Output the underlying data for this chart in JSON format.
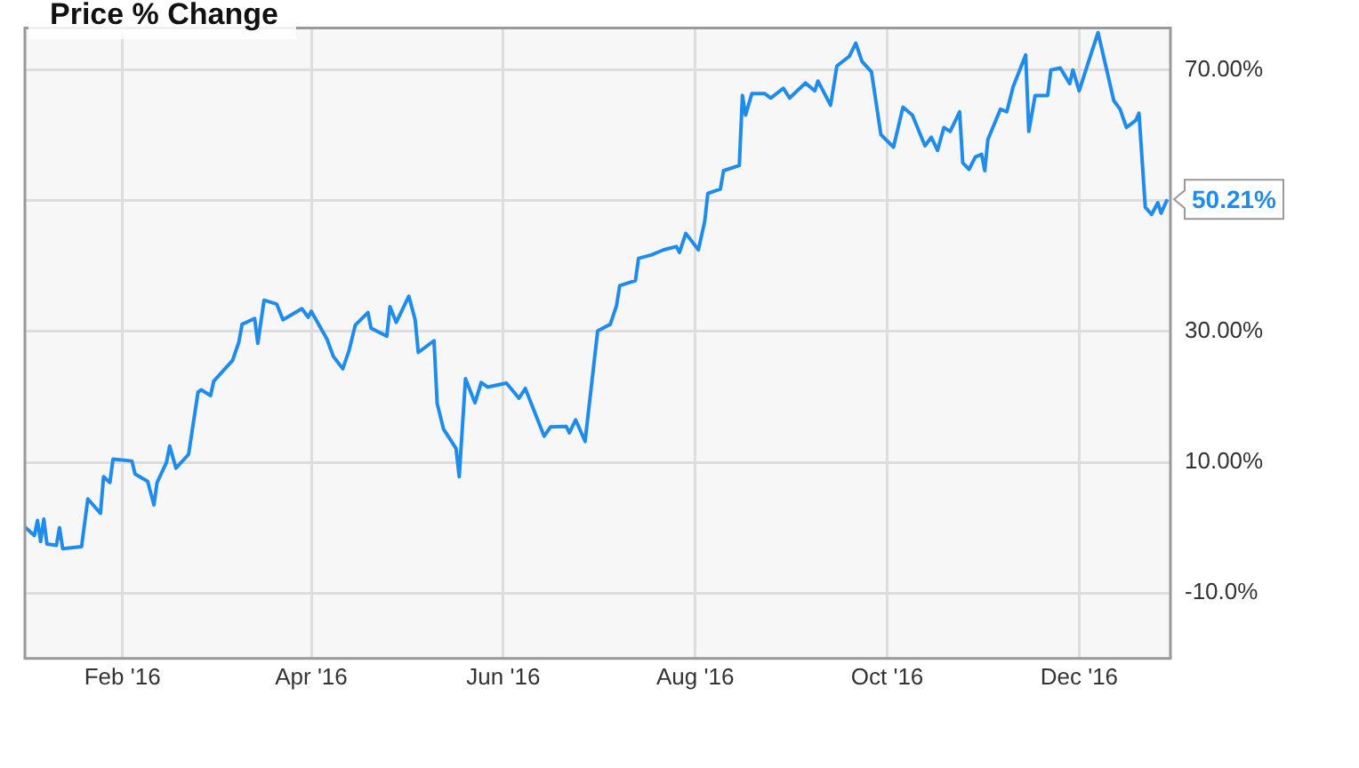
{
  "chart_data": {
    "type": "line",
    "title": "Price % Change",
    "x": [
      "2016-01-01",
      "2016-01-04",
      "2016-01-05",
      "2016-01-06",
      "2016-01-07",
      "2016-01-08",
      "2016-01-11",
      "2016-01-12",
      "2016-01-13",
      "2016-01-19",
      "2016-01-21",
      "2016-01-25",
      "2016-01-26",
      "2016-01-28",
      "2016-01-29",
      "2016-02-04",
      "2016-02-05",
      "2016-02-09",
      "2016-02-11",
      "2016-02-12",
      "2016-02-15",
      "2016-02-16",
      "2016-02-18",
      "2016-02-22",
      "2016-02-25",
      "2016-02-26",
      "2016-02-29",
      "2016-03-01",
      "2016-03-07",
      "2016-03-09",
      "2016-03-10",
      "2016-03-14",
      "2016-03-15",
      "2016-03-17",
      "2016-03-21",
      "2016-03-23",
      "2016-03-29",
      "2016-03-31",
      "2016-04-01",
      "2016-04-05",
      "2016-04-06",
      "2016-04-08",
      "2016-04-11",
      "2016-04-13",
      "2016-04-15",
      "2016-04-19",
      "2016-04-20",
      "2016-04-25",
      "2016-04-26",
      "2016-04-28",
      "2016-05-02",
      "2016-05-04",
      "2016-05-05",
      "2016-05-10",
      "2016-05-11",
      "2016-05-13",
      "2016-05-17",
      "2016-05-18",
      "2016-05-20",
      "2016-05-23",
      "2016-05-25",
      "2016-05-27",
      "2016-06-02",
      "2016-06-06",
      "2016-06-08",
      "2016-06-14",
      "2016-06-16",
      "2016-06-21",
      "2016-06-22",
      "2016-06-24",
      "2016-06-27",
      "2016-07-01",
      "2016-07-05",
      "2016-07-07",
      "2016-07-08",
      "2016-07-13",
      "2016-07-14",
      "2016-07-18",
      "2016-07-22",
      "2016-07-26",
      "2016-07-27",
      "2016-07-29",
      "2016-08-02",
      "2016-08-04",
      "2016-08-05",
      "2016-08-09",
      "2016-08-10",
      "2016-08-15",
      "2016-08-16",
      "2016-08-17",
      "2016-08-19",
      "2016-08-23",
      "2016-08-25",
      "2016-08-29",
      "2016-08-31",
      "2016-09-05",
      "2016-09-08",
      "2016-09-09",
      "2016-09-13",
      "2016-09-15",
      "2016-09-19",
      "2016-09-21",
      "2016-09-23",
      "2016-09-26",
      "2016-09-29",
      "2016-10-03",
      "2016-10-06",
      "2016-10-09",
      "2016-10-13",
      "2016-10-15",
      "2016-10-17",
      "2016-10-19",
      "2016-10-21",
      "2016-10-24",
      "2016-10-25",
      "2016-10-27",
      "2016-10-29",
      "2016-10-31",
      "2016-11-01",
      "2016-11-02",
      "2016-11-06",
      "2016-11-08",
      "2016-11-10",
      "2016-11-14",
      "2016-11-15",
      "2016-11-17",
      "2016-11-21",
      "2016-11-22",
      "2016-11-25",
      "2016-11-28",
      "2016-11-29",
      "2016-12-01",
      "2016-12-05",
      "2016-12-07",
      "2016-12-12",
      "2016-12-14",
      "2016-12-16",
      "2016-12-19",
      "2016-12-20",
      "2016-12-22",
      "2016-12-24",
      "2016-12-26",
      "2016-12-27",
      "2016-12-29"
    ],
    "series": [
      {
        "color": "#1f8ceb",
        "values": [
          0.1,
          -1.2,
          1.1,
          -2.1,
          1.3,
          -2.5,
          -2.7,
          0,
          -3.2,
          -2.9,
          4.4,
          2.2,
          7.8,
          6.9,
          10.5,
          10.2,
          8.2,
          7.1,
          3.5,
          6.9,
          10,
          12.5,
          9.1,
          11.2,
          20.7,
          21.1,
          20.2,
          22.4,
          25.6,
          28.4,
          31.1,
          32,
          28.2,
          34.8,
          34.2,
          31.8,
          33.5,
          32.2,
          33.1,
          29.7,
          28.8,
          26.2,
          24.3,
          27.1,
          31,
          32.9,
          30.5,
          29.3,
          33.8,
          31.4,
          35.4,
          31.8,
          26.8,
          28.6,
          19,
          15.1,
          12.1,
          7.8,
          22.8,
          19.1,
          22.2,
          21.5,
          22.1,
          19.8,
          21.3,
          14,
          15.4,
          15.5,
          14.5,
          16.5,
          13.2,
          30.1,
          31.1,
          34,
          37,
          37.8,
          41.2,
          41.7,
          42.5,
          43,
          42.1,
          45,
          42.5,
          46.8,
          51.1,
          51.8,
          54.6,
          55.4,
          66.1,
          63.1,
          66.4,
          66.4,
          65.7,
          67.2,
          65.7,
          68,
          66.8,
          68.3,
          64.6,
          70.6,
          72.1,
          74.1,
          71.3,
          69.7,
          60.1,
          58.2,
          64.3,
          63.1,
          58.4,
          59.7,
          57.7,
          61.2,
          60.6,
          63.6,
          55.8,
          54.8,
          56.7,
          57.1,
          54.6,
          59.4,
          64,
          63.6,
          67.4,
          72.3,
          60.6,
          66.1,
          66.1,
          70,
          70.3,
          67.9,
          70,
          66.8,
          72.8,
          75.7,
          65.3,
          64,
          61.2,
          62.3,
          63.4,
          49,
          47.9,
          49.7,
          48.1,
          50.21
        ]
      }
    ],
    "xlim": [
      "2016-01-01",
      "2016-12-30"
    ],
    "xticks": [
      {
        "value": "2016-02-01",
        "label": "Feb '16"
      },
      {
        "value": "2016-04-01",
        "label": "Apr '16"
      },
      {
        "value": "2016-06-01",
        "label": "Jun '16"
      },
      {
        "value": "2016-08-01",
        "label": "Aug '16"
      },
      {
        "value": "2016-10-01",
        "label": "Oct '16"
      },
      {
        "value": "2016-12-01",
        "label": "Dec '16"
      }
    ],
    "ylim": [
      -20,
      76.4
    ],
    "yticks": [
      {
        "value": -10,
        "label": "-10.0%"
      },
      {
        "value": 10,
        "label": "10.00%"
      },
      {
        "value": 30,
        "label": "30.00%"
      },
      {
        "value": 50,
        "label": null
      },
      {
        "value": 70,
        "label": "70.00%"
      }
    ],
    "annotations": [
      {
        "text": "50.21%",
        "x": "2016-12-29",
        "y": 50.21
      }
    ],
    "grid": true,
    "marker": "none",
    "line_style": "solid"
  }
}
